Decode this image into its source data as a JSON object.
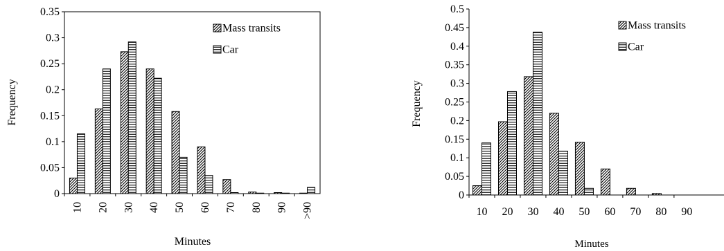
{
  "chart_data": [
    {
      "type": "bar",
      "categories": [
        "10",
        "20",
        "30",
        "40",
        "50",
        "60",
        "70",
        "80",
        "90",
        ">90"
      ],
      "series": [
        {
          "name": "Mass transits",
          "values": [
            0.03,
            0.163,
            0.273,
            0.24,
            0.158,
            0.09,
            0.027,
            0.003,
            0.002,
            0.001
          ]
        },
        {
          "name": "Car",
          "values": [
            0.115,
            0.24,
            0.292,
            0.222,
            0.07,
            0.035,
            0.002,
            0.001,
            0.001,
            0.012
          ]
        }
      ],
      "xlabel": "Minutes",
      "ylabel": "Frequency",
      "ylim": [
        0,
        0.35
      ],
      "yticks": [
        "0",
        "0.05",
        "0.1",
        "0.15",
        "0.2",
        "0.25",
        "0.3",
        "0.35"
      ],
      "tick_label_orientation": "rotated",
      "legend_position": "top-right",
      "series_patterns": [
        "diagonal-hatch",
        "horizontal-stripes"
      ]
    },
    {
      "type": "bar",
      "categories": [
        "10",
        "20",
        "30",
        "40",
        "50",
        "60",
        "70",
        "80",
        "90"
      ],
      "series": [
        {
          "name": "Mass transits",
          "values": [
            0.025,
            0.197,
            0.318,
            0.22,
            0.142,
            0.07,
            0.018,
            0.004,
            0.0
          ]
        },
        {
          "name": "Car",
          "values": [
            0.14,
            0.278,
            0.438,
            0.118,
            0.018,
            0.0,
            0.0,
            0.0,
            0.0
          ]
        }
      ],
      "xlabel": "Minutes",
      "ylabel": "Frequency",
      "ylim": [
        0,
        0.5
      ],
      "yticks": [
        "0",
        "0.05",
        "0.1",
        "0.15",
        "0.2",
        "0.25",
        "0.3",
        "0.35",
        "0.4",
        "0.45",
        "0.5"
      ],
      "tick_label_orientation": "horizontal",
      "legend_position": "top-right",
      "series_patterns": [
        "diagonal-hatch",
        "horizontal-stripes"
      ]
    }
  ]
}
